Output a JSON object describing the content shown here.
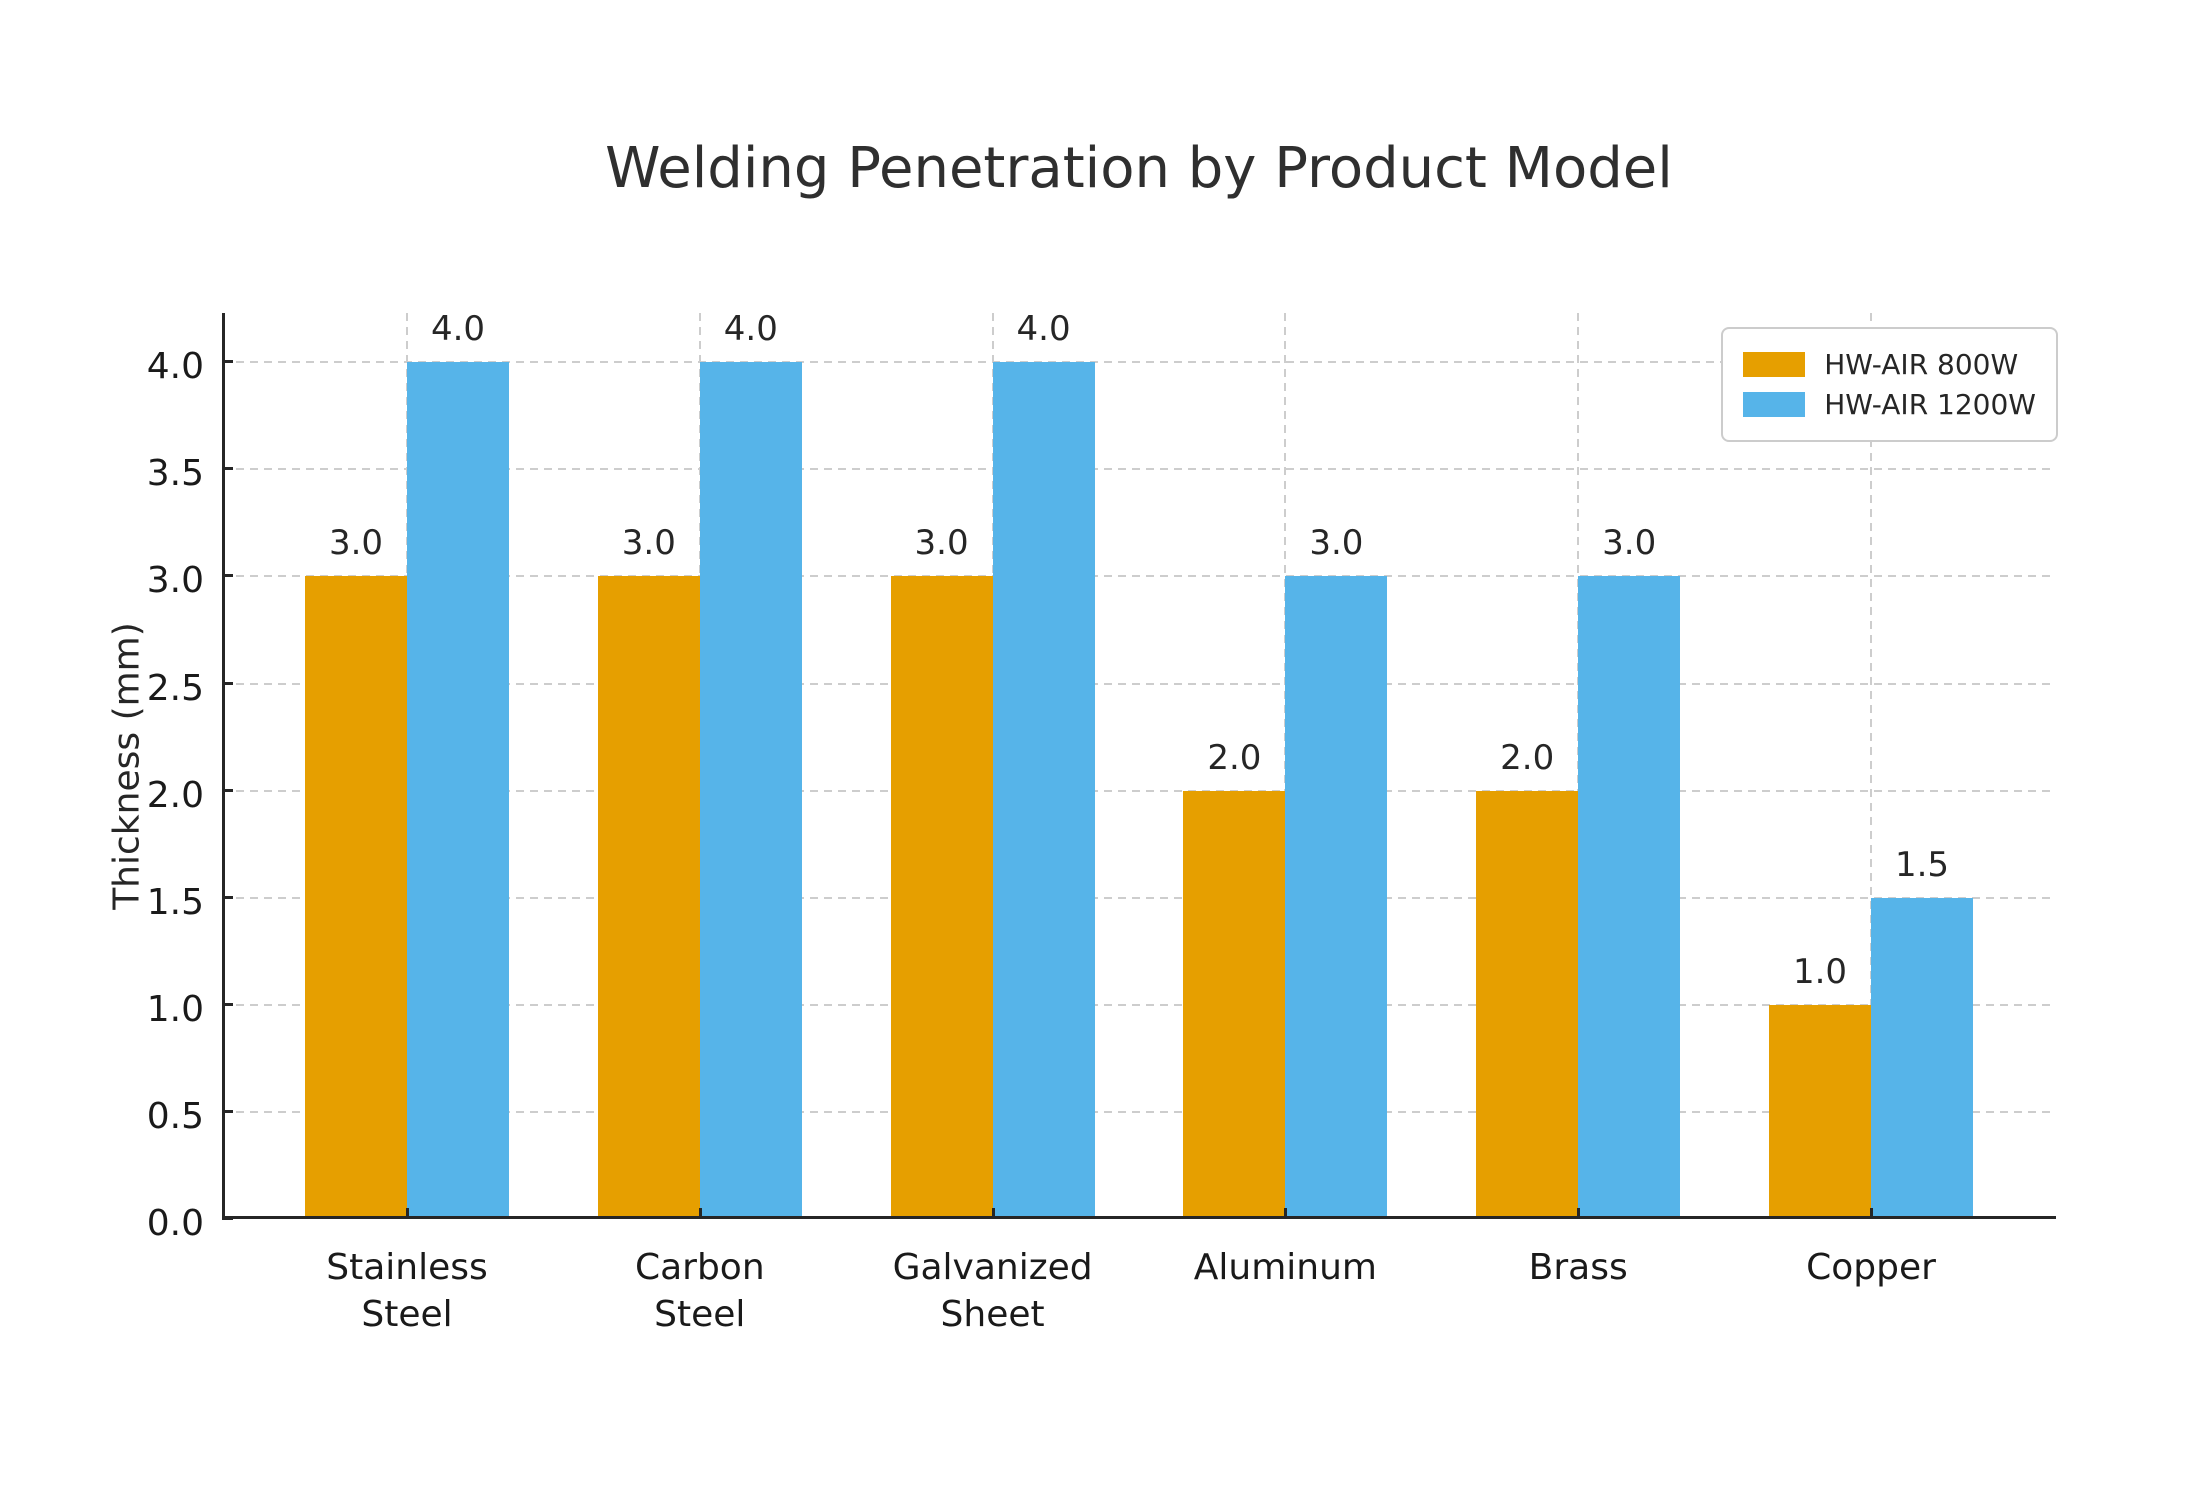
{
  "chart_data": {
    "type": "bar",
    "title": "Welding Penetration by Product Model",
    "xlabel": "",
    "ylabel": "Thickness (mm)",
    "categories": [
      "Stainless Steel",
      "Carbon Steel",
      "Galvanized Sheet",
      "Aluminum",
      "Brass",
      "Copper"
    ],
    "category_label_lines": [
      [
        "Stainless",
        "Steel"
      ],
      [
        "Carbon",
        "Steel"
      ],
      [
        "Galvanized",
        "Sheet"
      ],
      [
        "Aluminum"
      ],
      [
        "Brass"
      ],
      [
        "Copper"
      ]
    ],
    "series": [
      {
        "name": "HW-AIR 800W",
        "color": "#E69F00",
        "values": [
          3.0,
          3.0,
          3.0,
          2.0,
          2.0,
          1.0
        ]
      },
      {
        "name": "HW-AIR 1200W",
        "color": "#56B4E9",
        "values": [
          4.0,
          4.0,
          4.0,
          3.0,
          3.0,
          1.5
        ]
      }
    ],
    "yticks": [
      0.0,
      0.5,
      1.0,
      1.5,
      2.0,
      2.5,
      3.0,
      3.5,
      4.0
    ],
    "ylim": [
      0,
      4.23
    ],
    "grid": true,
    "grid_style": "dashed",
    "legend_position": "upper right",
    "bar_value_labels": true,
    "colors": {
      "background": "#ffffff",
      "axis": "#262626",
      "grid": "#cdcdcd",
      "text": "#262626",
      "title": "#2f2f2f",
      "legend_border": "#cccccc"
    }
  }
}
